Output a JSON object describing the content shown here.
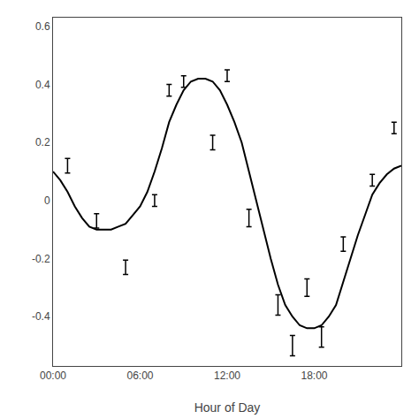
{
  "chart_data": {
    "type": "line",
    "xlabel": "Hour of Day",
    "xlim": [
      0,
      24
    ],
    "xticks": [
      {
        "value": 0,
        "label": "00:00"
      },
      {
        "value": 6,
        "label": "06:00"
      },
      {
        "value": 12,
        "label": "12:00"
      },
      {
        "value": 18,
        "label": "18:00"
      }
    ],
    "ylim": [
      -0.57,
      0.63
    ],
    "yticks": [
      -0.4,
      -0.2,
      0,
      0.2,
      0.4,
      0.6
    ],
    "grid": false,
    "series": [
      {
        "type": "line",
        "color": "#000000",
        "x": [
          0.0,
          0.5,
          1.0,
          1.5,
          2.0,
          2.5,
          3.0,
          3.5,
          4.0,
          4.5,
          5.0,
          5.5,
          6.0,
          6.5,
          7.0,
          7.5,
          8.0,
          8.5,
          9.0,
          9.5,
          10.0,
          10.5,
          11.0,
          11.5,
          12.0,
          12.5,
          13.0,
          13.5,
          14.0,
          14.5,
          15.0,
          15.5,
          16.0,
          16.5,
          17.0,
          17.5,
          18.0,
          18.5,
          19.0,
          19.5,
          20.0,
          20.5,
          21.0,
          21.5,
          22.0,
          22.5,
          23.0,
          23.5,
          24.0
        ],
        "values": [
          0.1,
          0.07,
          0.03,
          -0.02,
          -0.06,
          -0.09,
          -0.1,
          -0.1,
          -0.1,
          -0.09,
          -0.08,
          -0.05,
          -0.02,
          0.03,
          0.1,
          0.18,
          0.27,
          0.33,
          0.38,
          0.41,
          0.42,
          0.42,
          0.41,
          0.38,
          0.33,
          0.27,
          0.2,
          0.1,
          0.0,
          -0.1,
          -0.2,
          -0.29,
          -0.36,
          -0.4,
          -0.43,
          -0.44,
          -0.44,
          -0.43,
          -0.4,
          -0.36,
          -0.28,
          -0.2,
          -0.12,
          -0.05,
          0.02,
          0.06,
          0.09,
          0.11,
          0.12
        ]
      },
      {
        "type": "errorbar",
        "color": "#000000",
        "marker": "none",
        "x": [
          1.0,
          3.0,
          5.0,
          7.0,
          8.0,
          9.0,
          11.0,
          12.0,
          13.5,
          15.5,
          16.5,
          17.5,
          18.5,
          20.0,
          22.0,
          23.5
        ],
        "values": [
          0.12,
          -0.07,
          -0.23,
          0.0,
          0.38,
          0.41,
          0.2,
          0.43,
          -0.06,
          -0.36,
          -0.5,
          -0.3,
          -0.47,
          -0.15,
          0.07,
          0.25
        ],
        "errors": [
          0.025,
          0.025,
          0.025,
          0.02,
          0.02,
          0.02,
          0.025,
          0.02,
          0.03,
          0.035,
          0.035,
          0.03,
          0.035,
          0.025,
          0.02,
          0.02
        ]
      }
    ]
  }
}
